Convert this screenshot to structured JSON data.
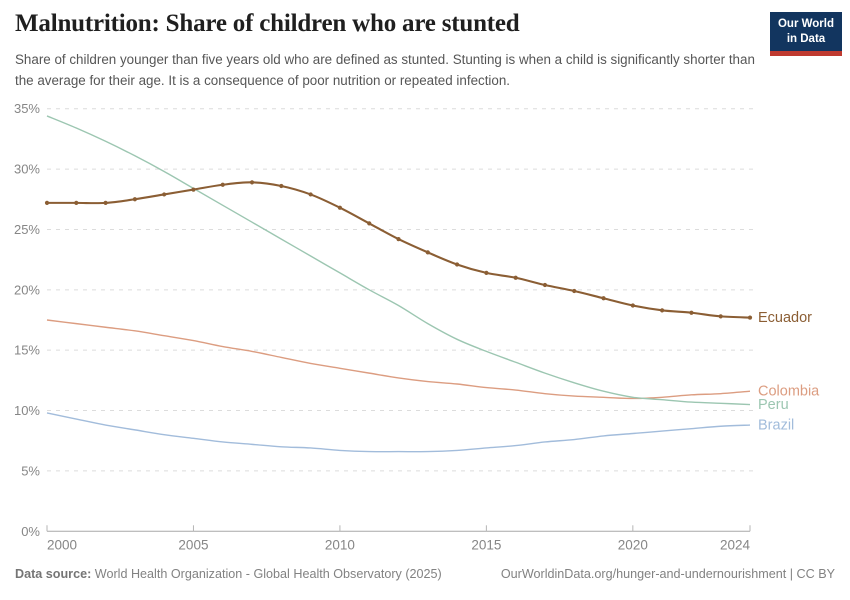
{
  "logo": {
    "line1": "Our World",
    "line2": "in Data",
    "bg_color": "#12355f",
    "stripe_color": "#bf3a30"
  },
  "chart_data": {
    "type": "line",
    "title": "Malnutrition: Share of children who are stunted",
    "subtitle": "Share of children younger than five years old who are defined as stunted. Stunting is when a child is significantly shorter than the average for their age. It is a consequence of poor nutrition or repeated infection.",
    "x": [
      2000,
      2001,
      2002,
      2003,
      2004,
      2005,
      2006,
      2007,
      2008,
      2009,
      2010,
      2011,
      2012,
      2013,
      2014,
      2015,
      2016,
      2017,
      2018,
      2019,
      2020,
      2021,
      2022,
      2023,
      2024
    ],
    "series": [
      {
        "name": "Colombia",
        "color": "#dc9d81",
        "values": [
          17.5,
          17.2,
          16.9,
          16.6,
          16.2,
          15.8,
          15.3,
          14.9,
          14.4,
          13.9,
          13.5,
          13.1,
          12.7,
          12.4,
          12.2,
          11.9,
          11.7,
          11.4,
          11.2,
          11.1,
          11.0,
          11.1,
          11.3,
          11.4,
          11.6
        ]
      },
      {
        "name": "Peru",
        "color": "#9cc6b1",
        "values": [
          34.4,
          33.4,
          32.3,
          31.1,
          29.8,
          28.4,
          27.0,
          25.6,
          24.2,
          22.8,
          21.4,
          20.0,
          18.7,
          17.2,
          15.9,
          14.9,
          14.0,
          13.1,
          12.3,
          11.6,
          11.1,
          10.9,
          10.7,
          10.6,
          10.5
        ]
      },
      {
        "name": "Brazil",
        "color": "#a2bcdb",
        "values": [
          9.8,
          9.3,
          8.8,
          8.4,
          8.0,
          7.7,
          7.4,
          7.2,
          7.0,
          6.9,
          6.7,
          6.6,
          6.6,
          6.6,
          6.7,
          6.9,
          7.1,
          7.4,
          7.6,
          7.9,
          8.1,
          8.3,
          8.5,
          8.7,
          8.8
        ]
      },
      {
        "name": "Ecuador",
        "color": "#8b5e34",
        "emphasized": true,
        "markers": true,
        "values": [
          27.2,
          27.2,
          27.2,
          27.5,
          27.9,
          28.3,
          28.7,
          28.9,
          28.6,
          27.9,
          26.8,
          25.5,
          24.2,
          23.1,
          22.1,
          21.4,
          21.0,
          20.4,
          19.9,
          19.3,
          18.7,
          18.3,
          18.1,
          17.8,
          17.7
        ]
      }
    ],
    "ylim": [
      0,
      35
    ],
    "yticks": [
      0,
      5,
      10,
      15,
      20,
      25,
      30,
      35
    ],
    "ytick_suffix": "%",
    "xticks": [
      2000,
      2005,
      2010,
      2015,
      2020,
      2024
    ],
    "grid": "horizontal-dashed",
    "legend": "end-of-line-labels",
    "xlabel": "",
    "ylabel": ""
  },
  "footer": {
    "data_source_label": "Data source:",
    "data_source_value": "World Health Organization - Global Health Observatory (2025)",
    "url": "OurWorldinData.org/hunger-and-undernourishment",
    "license": "| CC BY"
  }
}
